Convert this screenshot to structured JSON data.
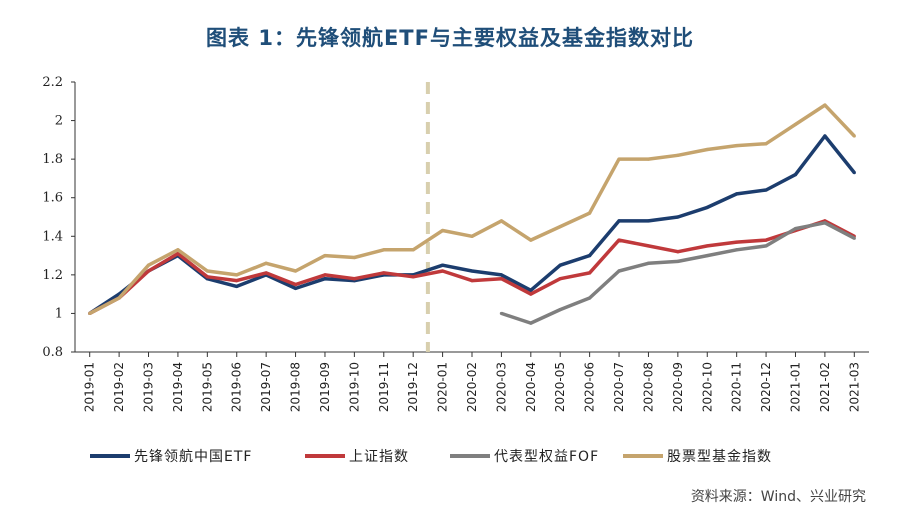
{
  "chart_data": {
    "type": "line",
    "title": "图表 1：先锋领航ETF与主要权益及基金指数对比",
    "source": "资料来源：Wind、兴业研究",
    "ylim": [
      0.8,
      2.2
    ],
    "yticks": [
      "0.8",
      "1",
      "1.2",
      "1.4",
      "1.6",
      "1.8",
      "2",
      "2.2"
    ],
    "grid": false,
    "legend_position": "bottom",
    "x_tick_labels": [
      "2019-01",
      "2019-02",
      "2019-03",
      "2019-04",
      "2019-05",
      "2019-06",
      "2019-07",
      "2019-08",
      "2019-09",
      "2019-10",
      "2019-11",
      "2019-12",
      "2020-01",
      "2020-02",
      "2020-03",
      "2020-04",
      "2020-05",
      "2020-06",
      "2020-07",
      "2020-08",
      "2020-09",
      "2020-10",
      "2020-11",
      "2020-12",
      "2021-01",
      "2021-02",
      "2021-03"
    ],
    "x": [
      "2019-01",
      "2019-02",
      "2019-03",
      "2019-04",
      "2019-05",
      "2019-06",
      "2019-07",
      "2019-08",
      "2019-09",
      "2019-10",
      "2019-11",
      "2019-12",
      "2020-01",
      "2020-02",
      "2020-03",
      "2020-04",
      "2020-05",
      "2020-06",
      "2020-07",
      "2020-08",
      "2020-09",
      "2020-10",
      "2020-11",
      "2020-12",
      "2021-01",
      "2021-02",
      "2021-03"
    ],
    "vertical_marker": {
      "x": "2019-12",
      "style": "dashed",
      "color": "#d8cfae"
    },
    "series": [
      {
        "name": "先锋领航中国ETF",
        "color": "#1c3d6e",
        "values": [
          1.0,
          1.1,
          1.22,
          1.3,
          1.18,
          1.14,
          1.2,
          1.13,
          1.18,
          1.17,
          1.2,
          1.2,
          1.25,
          1.22,
          1.2,
          1.12,
          1.25,
          1.3,
          1.48,
          1.48,
          1.5,
          1.55,
          1.62,
          1.64,
          1.72,
          1.92,
          1.73
        ]
      },
      {
        "name": "上证指数",
        "color": "#c0393b",
        "values": [
          1.0,
          1.08,
          1.22,
          1.31,
          1.19,
          1.17,
          1.21,
          1.15,
          1.2,
          1.18,
          1.21,
          1.19,
          1.22,
          1.17,
          1.18,
          1.1,
          1.18,
          1.21,
          1.38,
          1.35,
          1.32,
          1.35,
          1.37,
          1.38,
          1.43,
          1.48,
          1.4
        ]
      },
      {
        "name": "代表型权益FOF",
        "color": "#7f7f7f",
        "values": [
          null,
          null,
          null,
          null,
          null,
          null,
          null,
          null,
          null,
          null,
          null,
          null,
          null,
          null,
          1.0,
          0.95,
          1.02,
          1.08,
          1.22,
          1.26,
          1.27,
          1.3,
          1.33,
          1.35,
          1.44,
          1.47,
          1.39
        ]
      },
      {
        "name": "股票型基金指数",
        "color": "#c5a46d",
        "values": [
          1.0,
          1.08,
          1.25,
          1.33,
          1.22,
          1.2,
          1.26,
          1.22,
          1.3,
          1.29,
          1.33,
          1.33,
          1.43,
          1.4,
          1.48,
          1.38,
          1.45,
          1.52,
          1.8,
          1.8,
          1.82,
          1.85,
          1.87,
          1.88,
          1.98,
          2.08,
          1.92
        ]
      }
    ]
  }
}
